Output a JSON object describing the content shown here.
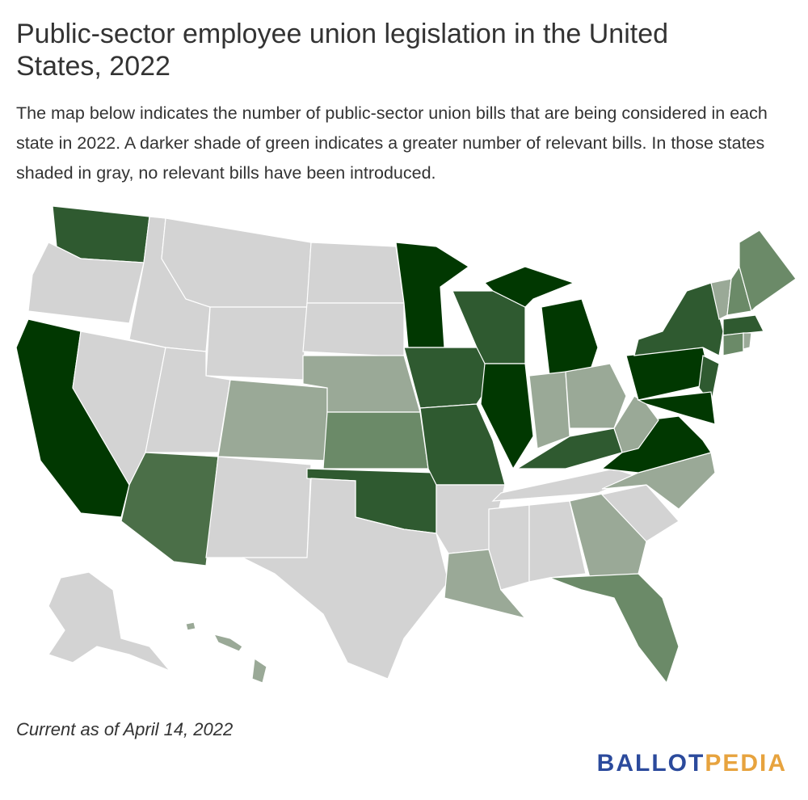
{
  "header": {
    "title": "Public-sector employee union legislation in the United States, 2022",
    "description": "The map below indicates the number of public-sector union bills that are being considered in each state in 2022. A darker shade of green indicates a greater number of relevant bills. In those states shaded in gray, no relevant bills have been introduced."
  },
  "footer": {
    "note": "Current as of April 14, 2022",
    "logo_first": "BALLOT",
    "logo_second": "PEDIA"
  }
}
